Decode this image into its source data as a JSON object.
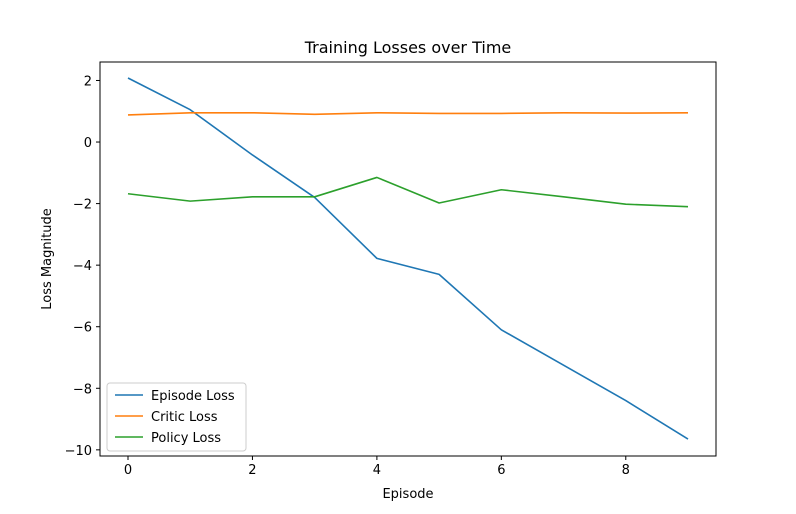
{
  "chart_data": {
    "type": "line",
    "title": "Training Losses over Time",
    "xlabel": "Episode",
    "ylabel": "Loss Magnitude",
    "x": [
      0,
      1,
      2,
      3,
      4,
      5,
      6,
      7,
      8,
      9
    ],
    "xlim": [
      -0.45,
      9.45
    ],
    "ylim": [
      -10.2,
      2.6
    ],
    "xticks": [
      0,
      2,
      4,
      6,
      8
    ],
    "yticks": [
      -10,
      -8,
      -6,
      -4,
      -2,
      0,
      2
    ],
    "xtick_labels": [
      "0",
      "2",
      "4",
      "6",
      "8"
    ],
    "ytick_labels": [
      "−10",
      "−8",
      "−6",
      "−4",
      "−2",
      "0",
      "2"
    ],
    "grid": false,
    "legend_position": "lower-left",
    "series": [
      {
        "name": "Episode Loss",
        "color": "#1f77b4",
        "values": [
          2.08,
          1.05,
          -0.42,
          -1.8,
          -3.78,
          -4.3,
          -6.1,
          -7.25,
          -8.4,
          -9.65
        ]
      },
      {
        "name": "Critic Loss",
        "color": "#ff7f0e",
        "values": [
          0.88,
          0.95,
          0.95,
          0.9,
          0.95,
          0.93,
          0.93,
          0.95,
          0.94,
          0.95
        ]
      },
      {
        "name": "Policy Loss",
        "color": "#2ca02c",
        "values": [
          -1.68,
          -1.92,
          -1.78,
          -1.78,
          -1.15,
          -1.98,
          -1.55,
          -1.78,
          -2.02,
          -2.1
        ]
      }
    ]
  }
}
